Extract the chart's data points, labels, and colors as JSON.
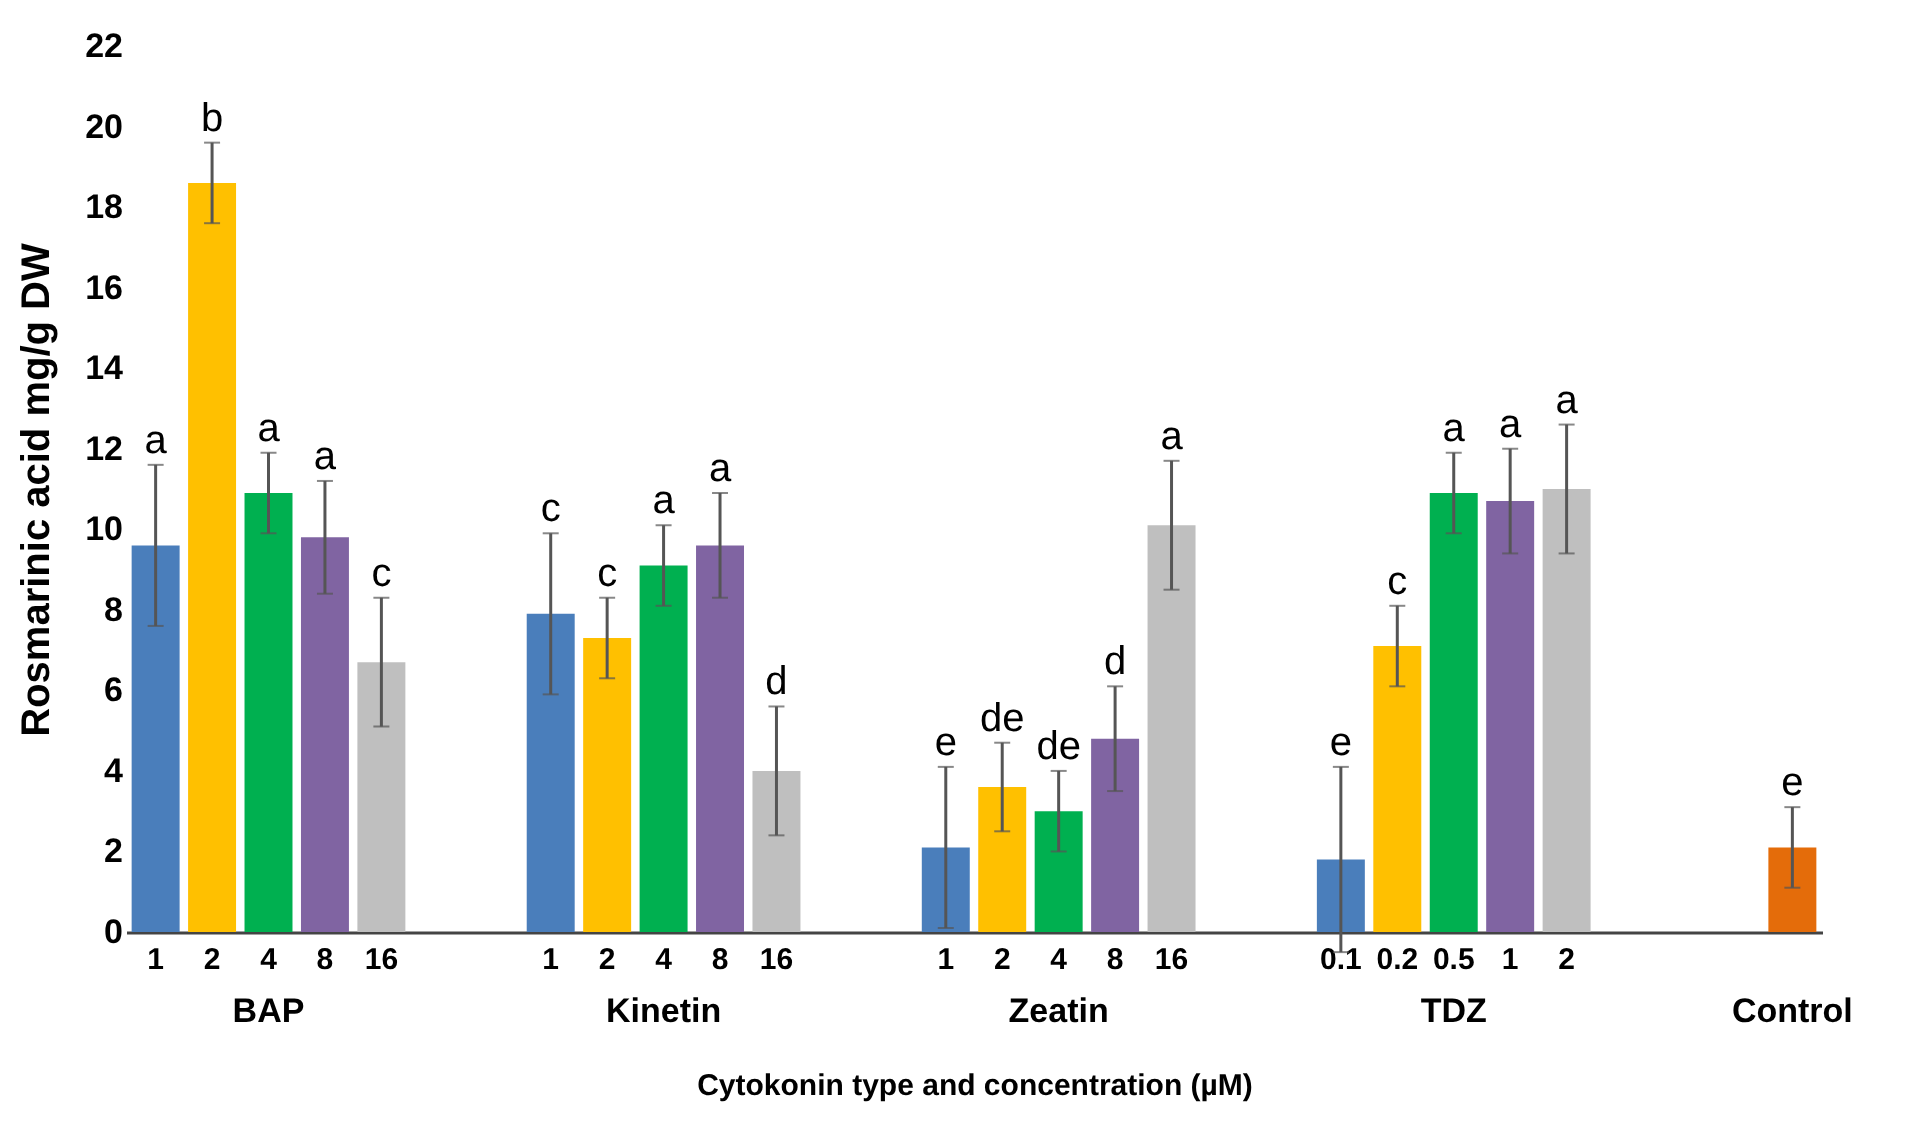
{
  "chart_data": {
    "type": "bar",
    "categories": [
      "1",
      "2",
      "4",
      "8",
      "16",
      null,
      null,
      "1",
      "2",
      "4",
      "8",
      "16",
      null,
      null,
      "1",
      "2",
      "4",
      "8",
      "16",
      null,
      null,
      "0.1",
      "0.2",
      "0.5",
      "1",
      "2",
      null,
      null,
      null,
      null
    ],
    "values": [
      9.6,
      18.6,
      10.9,
      9.8,
      6.7,
      null,
      null,
      7.9,
      7.3,
      9.1,
      9.6,
      4.0,
      null,
      null,
      2.1,
      3.6,
      3.0,
      4.8,
      10.1,
      null,
      null,
      1.8,
      7.1,
      10.9,
      10.7,
      11.0,
      null,
      null,
      null,
      2.1
    ],
    "errors": [
      2.0,
      1.0,
      1.0,
      1.4,
      1.6,
      null,
      null,
      2.0,
      1.0,
      1.0,
      1.3,
      1.6,
      null,
      null,
      2.0,
      1.1,
      1.0,
      1.3,
      1.6,
      null,
      null,
      2.3,
      1.0,
      1.0,
      1.3,
      1.6,
      null,
      null,
      null,
      1.0
    ],
    "colors": [
      "#4a7ebb",
      "#ffc000",
      "#00b050",
      "#8064a2",
      "#bfbfbf",
      null,
      null,
      "#4a7ebb",
      "#ffc000",
      "#00b050",
      "#8064a2",
      "#bfbfbf",
      null,
      null,
      "#4a7ebb",
      "#ffc000",
      "#00b050",
      "#8064a2",
      "#bfbfbf",
      null,
      null,
      "#4a7ebb",
      "#ffc000",
      "#00b050",
      "#8064a2",
      "#bfbfbf",
      null,
      null,
      null,
      "#e46c0a"
    ],
    "value_labels": [
      "a",
      "b",
      "a",
      "a",
      "c",
      null,
      null,
      "c",
      "c",
      "a",
      "a",
      "d",
      null,
      null,
      "e",
      "de",
      "de",
      "d",
      "a",
      null,
      null,
      "e",
      "c",
      "a",
      "a",
      "a",
      null,
      null,
      null,
      "e"
    ],
    "annotations": [
      "BAP",
      "Kinetin",
      "Zeatin",
      "TDZ",
      "Control"
    ],
    "xlabel": "Cytokonin type and concentration (µM)",
    "ylabel": "Rosmarinic acid mg/g DW",
    "ylim": [
      0,
      22
    ],
    "yticks": [
      0,
      2,
      4,
      6,
      8,
      10,
      12,
      14,
      16,
      18,
      20,
      22
    ],
    "grid": false
  }
}
